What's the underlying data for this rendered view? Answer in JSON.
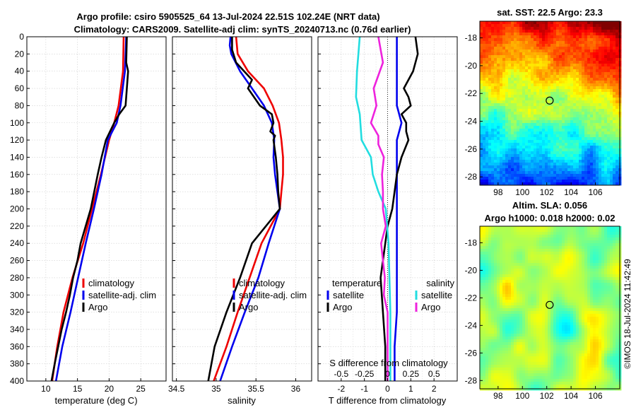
{
  "title": {
    "line1": "Argo profile: csiro 5905525_64 13-Jul-2024 22.51S 102.24E (NRT data)",
    "line2": "Climatology: CARS2009. Satellite-adj clim: synTS_20240713.nc (0.76d earlier)"
  },
  "watermark": "©IMOS 18-Jul-2024 11:42:49",
  "colors": {
    "climatology": "#ee0000",
    "satellite": "#0000ee",
    "argo": "#000000",
    "t_sat": "#0000ee",
    "s_sat": "#22dde0",
    "s_argo": "#ee22dd"
  },
  "chart_data": [
    {
      "type": "line",
      "id": "temperature",
      "xlabel": "temperature (deg C)",
      "xlim": [
        7,
        29
      ],
      "ylim": [
        0,
        400
      ],
      "xticks": [
        "10",
        "15",
        "20",
        "25"
      ],
      "xtick_values": [
        10,
        15,
        20,
        25
      ],
      "yticks": [
        "0",
        "20",
        "40",
        "60",
        "80",
        "100",
        "120",
        "140",
        "160",
        "180",
        "200",
        "220",
        "240",
        "260",
        "280",
        "300",
        "320",
        "340",
        "360",
        "380",
        "400"
      ],
      "legend": [
        "climatology",
        "satellite-adj. clim",
        "Argo"
      ],
      "series": [
        {
          "name": "climatology",
          "depth": [
            0,
            40,
            80,
            100,
            120,
            160,
            200,
            240,
            280,
            320,
            360,
            400
          ],
          "values": [
            22.3,
            22.2,
            21.5,
            20.8,
            20.0,
            18.7,
            17.3,
            15.9,
            14.2,
            12.8,
            11.8,
            11.0
          ]
        },
        {
          "name": "satellite-adj. clim",
          "depth": [
            0,
            40,
            80,
            100,
            120,
            160,
            200,
            240,
            280,
            320,
            360,
            400
          ],
          "values": [
            22.7,
            22.5,
            21.8,
            21.2,
            19.8,
            18.8,
            17.6,
            16.3,
            15.1,
            13.9,
            12.6,
            11.6
          ]
        },
        {
          "name": "Argo",
          "depth": [
            0,
            30,
            40,
            60,
            80,
            90,
            100,
            120,
            140,
            160,
            200,
            240,
            260,
            280,
            300,
            320,
            340,
            380,
            400
          ],
          "values": [
            22.8,
            22.7,
            23.0,
            22.8,
            22.6,
            21.6,
            20.8,
            19.5,
            18.8,
            18.2,
            17.1,
            15.5,
            15.0,
            14.3,
            13.8,
            13.2,
            12.5,
            11.4,
            10.9
          ]
        }
      ]
    },
    {
      "type": "line",
      "id": "salinity",
      "xlabel": "salinity",
      "xlim": [
        34.45,
        36.2
      ],
      "ylim": [
        0,
        400
      ],
      "xticks": [
        "34.5",
        "35",
        "35.5",
        "36"
      ],
      "xtick_values": [
        34.5,
        35,
        35.5,
        36
      ],
      "legend": [
        "climatology",
        "satellite-adj. clim",
        "Argo"
      ],
      "series": [
        {
          "name": "climatology",
          "depth": [
            0,
            20,
            40,
            60,
            80,
            100,
            120,
            140,
            160,
            180,
            200,
            240,
            280,
            320,
            360,
            400
          ],
          "values": [
            35.25,
            35.27,
            35.4,
            35.6,
            35.71,
            35.79,
            35.82,
            35.84,
            35.84,
            35.82,
            35.8,
            35.57,
            35.42,
            35.27,
            35.13,
            34.97
          ]
        },
        {
          "name": "satellite-adj. clim",
          "depth": [
            0,
            10,
            20,
            40,
            60,
            80,
            100,
            120,
            140,
            160,
            180,
            200,
            240,
            280,
            320,
            360,
            400
          ],
          "values": [
            35.18,
            35.17,
            35.19,
            35.3,
            35.45,
            35.6,
            35.7,
            35.73,
            35.72,
            35.74,
            35.77,
            35.8,
            35.66,
            35.53,
            35.36,
            35.2,
            35.05
          ]
        },
        {
          "name": "Argo",
          "depth": [
            0,
            15,
            30,
            50,
            60,
            80,
            90,
            100,
            110,
            115,
            120,
            140,
            160,
            180,
            200,
            240,
            280,
            320,
            360,
            400
          ],
          "values": [
            35.2,
            35.2,
            35.25,
            35.45,
            35.4,
            35.55,
            35.7,
            35.72,
            35.68,
            35.74,
            35.72,
            35.75,
            35.77,
            35.78,
            35.8,
            35.45,
            35.3,
            35.13,
            34.98,
            34.9
          ]
        }
      ]
    },
    {
      "type": "line",
      "id": "difference",
      "xlabel": "T difference from climatology",
      "xlabel2": "S difference from climatology",
      "xlim": [
        -3,
        3
      ],
      "ylim": [
        0,
        400
      ],
      "xticks": [
        "-2",
        "-1",
        "0",
        "1",
        "2"
      ],
      "xtick_values": [
        -2,
        -1,
        0,
        1,
        2
      ],
      "xticks2": [
        "-0.5",
        "-0.25",
        "0",
        "0.25",
        "0.5"
      ],
      "legend_t_title": "temperature",
      "legend_s_title": "salinity",
      "legend_t": [
        "satellite",
        "Argo"
      ],
      "legend_s": [
        "satellite",
        "Argo"
      ],
      "series": [
        {
          "name": "T satellite",
          "depth": [
            0,
            40,
            80,
            100,
            120,
            160,
            200,
            240,
            280,
            320,
            360,
            400
          ],
          "values": [
            0.4,
            0.4,
            0.4,
            0.6,
            0.4,
            0.4,
            0.4,
            0.4,
            0.4,
            0.4,
            0.3,
            0.3
          ]
        },
        {
          "name": "T Argo",
          "depth": [
            0,
            20,
            40,
            60,
            70,
            80,
            90,
            100,
            110,
            120,
            140,
            160,
            180,
            200,
            220,
            240,
            280,
            320,
            360,
            400
          ],
          "values": [
            1.2,
            1.3,
            1.1,
            0.7,
            0.9,
            1.0,
            0.6,
            0.8,
            0.8,
            0.9,
            0.6,
            0.4,
            0.3,
            0.2,
            0.0,
            -0.1,
            -0.3,
            -0.2,
            -0.1,
            -0.1
          ]
        },
        {
          "name": "S satellite",
          "depth": [
            0,
            40,
            70,
            90,
            120,
            140,
            160,
            180,
            200,
            240,
            280,
            320,
            360,
            400
          ],
          "values": [
            -0.3,
            -0.33,
            -0.34,
            -0.3,
            -0.28,
            -0.18,
            -0.16,
            -0.1,
            -0.02,
            0.01,
            0.02,
            0.03,
            0.03,
            0.03
          ]
        },
        {
          "name": "S Argo",
          "depth": [
            0,
            30,
            60,
            80,
            100,
            115,
            125,
            140,
            160,
            180,
            200,
            220,
            240,
            260,
            280,
            300,
            320,
            400
          ],
          "values": [
            -0.1,
            -0.05,
            -0.15,
            -0.12,
            -0.18,
            -0.1,
            -0.1,
            -0.04,
            -0.06,
            -0.05,
            -0.05,
            -0.02,
            -0.07,
            -0.05,
            -0.03,
            -0.04,
            0.0,
            0.0
          ]
        }
      ]
    },
    {
      "type": "heatmap",
      "id": "sst_map",
      "title": "sat. SST: 22.5 Argo: 23.3",
      "xlim": [
        96.5,
        108
      ],
      "ylim": [
        -28.6,
        -16.8
      ],
      "xticks": [
        "98",
        "100",
        "102",
        "104",
        "106"
      ],
      "xtick_values": [
        98,
        100,
        102,
        104,
        106
      ],
      "yticks": [
        "-18",
        "-20",
        "-22",
        "-24",
        "-26",
        "-28"
      ],
      "ytick_values": [
        -18,
        -20,
        -22,
        -24,
        -26,
        -28
      ],
      "marker": {
        "lon": 102.24,
        "lat": -22.51
      }
    },
    {
      "type": "heatmap",
      "id": "sla_map",
      "title": "Altim. SLA: 0.056",
      "subtitle": "Argo h1000: 0.018 h2000: 0.02",
      "xlim": [
        96.5,
        108
      ],
      "ylim": [
        -28.6,
        -16.8
      ],
      "xticks": [
        "98",
        "100",
        "102",
        "104",
        "106"
      ],
      "xtick_values": [
        98,
        100,
        102,
        104,
        106
      ],
      "yticks": [
        "-18",
        "-20",
        "-22",
        "-24",
        "-26",
        "-28"
      ],
      "ytick_values": [
        -18,
        -20,
        -22,
        -24,
        -26,
        -28
      ],
      "marker": {
        "lon": 102.24,
        "lat": -22.51
      }
    }
  ]
}
